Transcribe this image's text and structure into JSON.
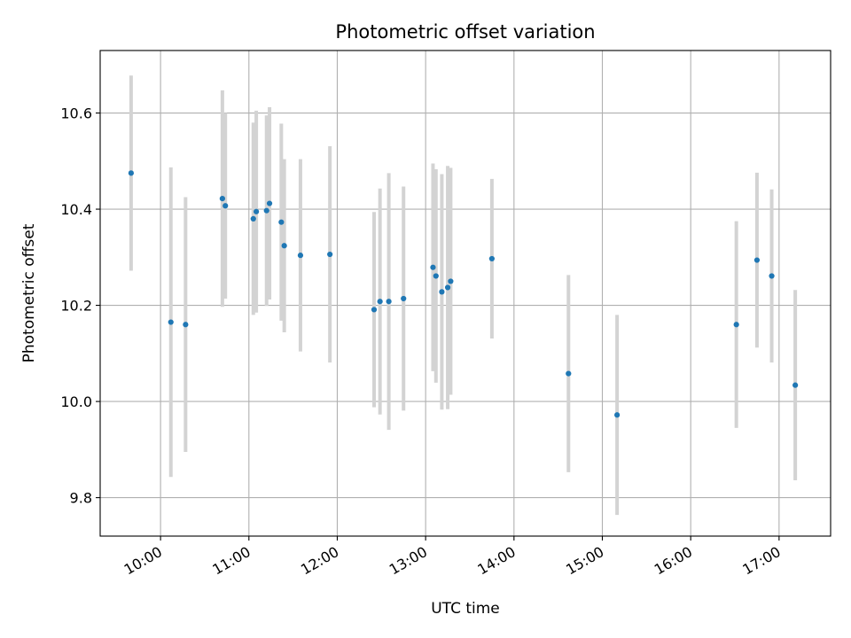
{
  "chart_data": {
    "type": "scatter",
    "title": "Photometric offset variation",
    "xlabel": "UTC time",
    "ylabel": "Photometric offset",
    "xlim": [
      "09:19",
      "17:35"
    ],
    "ylim": [
      9.72,
      10.73
    ],
    "x_ticks": [
      "10:00",
      "11:00",
      "12:00",
      "13:00",
      "14:00",
      "15:00",
      "16:00",
      "17:00"
    ],
    "y_ticks": [
      9.8,
      10.0,
      10.2,
      10.4,
      10.6
    ],
    "grid": true,
    "error_bar_color": "#d3d3d3",
    "marker_color": "#1f77b4",
    "points": [
      {
        "x": "09:40",
        "y": 10.475,
        "err": 0.203
      },
      {
        "x": "10:07",
        "y": 10.165,
        "err": 0.322
      },
      {
        "x": "10:17",
        "y": 10.16,
        "err": 0.265
      },
      {
        "x": "10:42",
        "y": 10.422,
        "err": 0.225
      },
      {
        "x": "10:44",
        "y": 10.407,
        "err": 0.193
      },
      {
        "x": "11:03",
        "y": 10.38,
        "err": 0.2
      },
      {
        "x": "11:05",
        "y": 10.395,
        "err": 0.21
      },
      {
        "x": "11:12",
        "y": 10.397,
        "err": 0.198
      },
      {
        "x": "11:14",
        "y": 10.412,
        "err": 0.2
      },
      {
        "x": "11:22",
        "y": 10.373,
        "err": 0.205
      },
      {
        "x": "11:24",
        "y": 10.324,
        "err": 0.18
      },
      {
        "x": "11:35",
        "y": 10.304,
        "err": 0.2
      },
      {
        "x": "11:55",
        "y": 10.306,
        "err": 0.225
      },
      {
        "x": "12:25",
        "y": 10.191,
        "err": 0.203
      },
      {
        "x": "12:29",
        "y": 10.208,
        "err": 0.235
      },
      {
        "x": "12:35",
        "y": 10.208,
        "err": 0.267
      },
      {
        "x": "12:45",
        "y": 10.214,
        "err": 0.233
      },
      {
        "x": "13:05",
        "y": 10.279,
        "err": 0.216
      },
      {
        "x": "13:07",
        "y": 10.261,
        "err": 0.222
      },
      {
        "x": "13:11",
        "y": 10.228,
        "err": 0.245
      },
      {
        "x": "13:15",
        "y": 10.237,
        "err": 0.253
      },
      {
        "x": "13:17",
        "y": 10.25,
        "err": 0.236
      },
      {
        "x": "13:45",
        "y": 10.297,
        "err": 0.166
      },
      {
        "x": "14:37",
        "y": 10.058,
        "err": 0.205
      },
      {
        "x": "15:10",
        "y": 9.972,
        "err": 0.208
      },
      {
        "x": "16:31",
        "y": 10.16,
        "err": 0.215
      },
      {
        "x": "16:45",
        "y": 10.294,
        "err": 0.182
      },
      {
        "x": "16:55",
        "y": 10.261,
        "err": 0.18
      },
      {
        "x": "17:11",
        "y": 10.034,
        "err": 0.198
      }
    ]
  }
}
